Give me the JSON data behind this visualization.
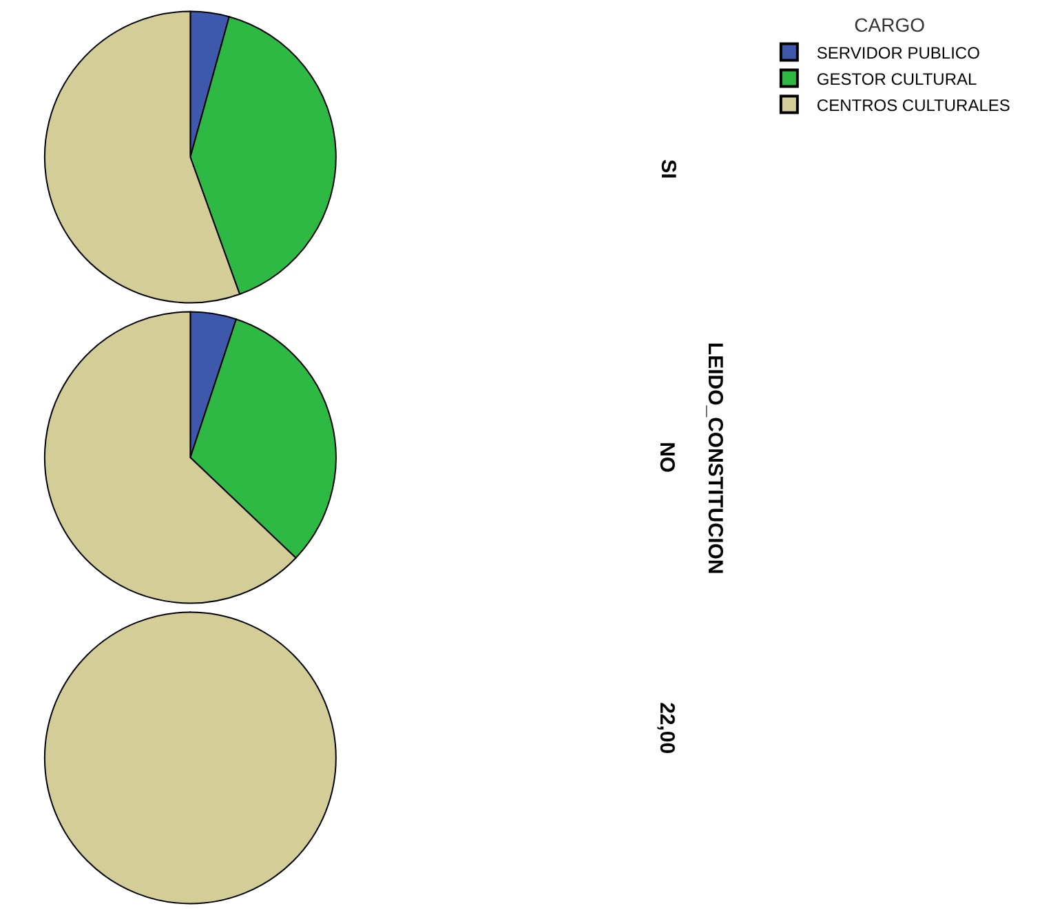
{
  "chart_data": {
    "type": "pie",
    "ylabel": "LEIDO_CONSTITUCION",
    "legend_title": "CARGO",
    "legend": "top right",
    "categories": [
      "SERVIDOR PUBLICO",
      "GESTOR CULTURAL",
      "CENTROS CULTURALES"
    ],
    "colors": [
      "#3e58ac",
      "#2eb844",
      "#d3ce97"
    ],
    "series": [
      {
        "name": "SI",
        "values": [
          4.3,
          40.2,
          55.5
        ]
      },
      {
        "name": "NO",
        "values": [
          5.1,
          32.0,
          62.9
        ]
      },
      {
        "name": "22,00",
        "values": [
          0,
          0,
          100
        ]
      }
    ]
  }
}
